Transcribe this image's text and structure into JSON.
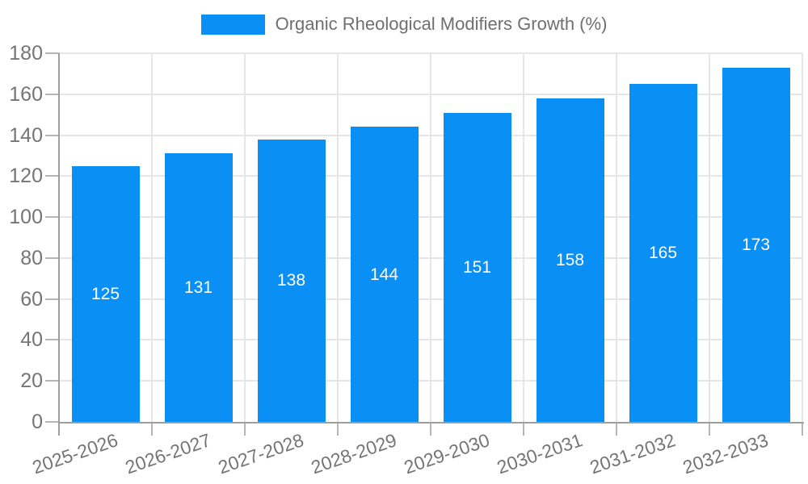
{
  "legend": {
    "label": "Organic Rheological Modifiers Growth (%)"
  },
  "chart_data": {
    "type": "bar",
    "title": "Organic Rheological Modifiers Growth (%)",
    "categories": [
      "2025-2026",
      "2026-2027",
      "2027-2028",
      "2028-2029",
      "2029-2030",
      "2030-2031",
      "2031-2032",
      "2032-2033"
    ],
    "values": [
      125,
      131,
      138,
      144,
      151,
      158,
      165,
      173
    ],
    "value_labels": [
      "125",
      "131",
      "138",
      "144",
      "151",
      "158",
      "165",
      "173"
    ],
    "ytick_labels": [
      "0",
      "20",
      "40",
      "60",
      "80",
      "100",
      "120",
      "140",
      "160",
      "180"
    ],
    "xlabel": "",
    "ylabel": "",
    "ylim": [
      0,
      180
    ],
    "ytick_step": 20,
    "grid": true,
    "legend_position": "top",
    "colors": {
      "bar": "#0a8ff5",
      "value_label": "#ffffff",
      "grid": "#e6e6e6",
      "tick": "#b5b5b5",
      "axis": "#9e9e9e",
      "axis_label": "#757575",
      "legend_text": "#6f6f6f"
    }
  }
}
